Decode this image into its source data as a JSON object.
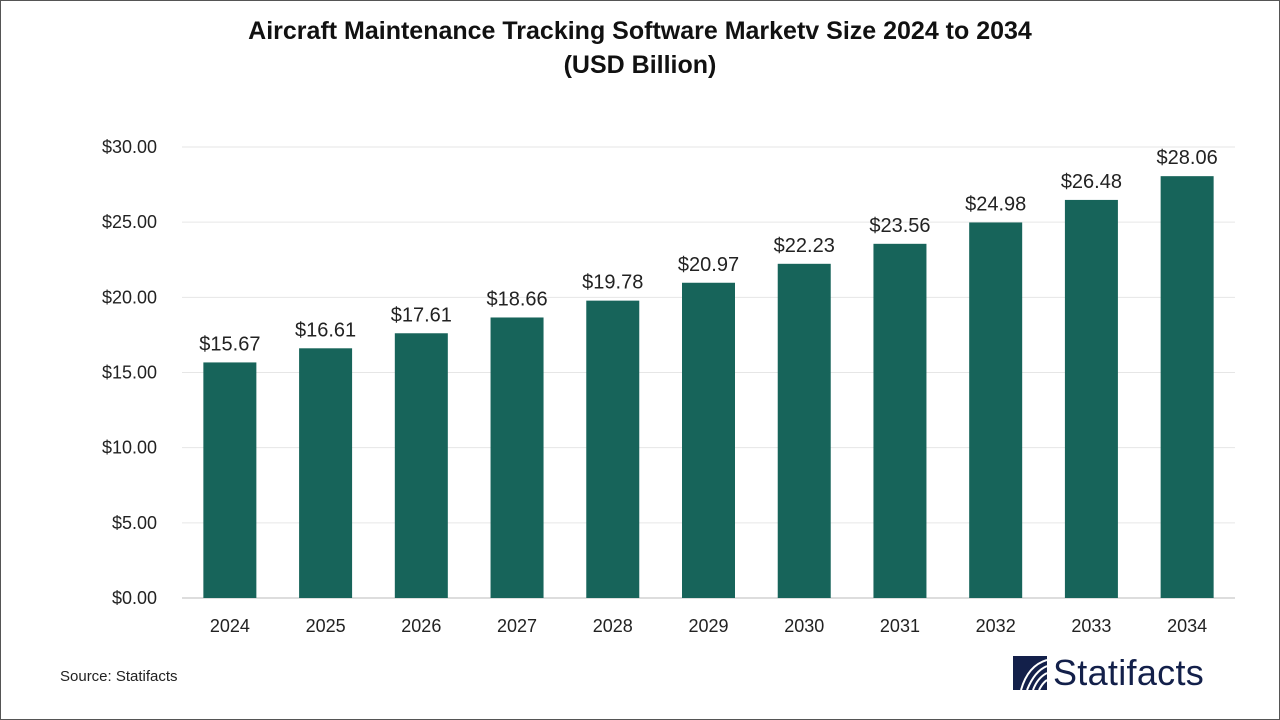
{
  "chart_data": {
    "type": "bar",
    "title": "Aircraft Maintenance Tracking Software Marketv Size 2024 to 2034",
    "subtitle": "(USD Billion)",
    "categories": [
      "2024",
      "2025",
      "2026",
      "2027",
      "2028",
      "2029",
      "2030",
      "2031",
      "2032",
      "2033",
      "2034"
    ],
    "values": [
      15.67,
      16.61,
      17.61,
      18.66,
      19.78,
      20.97,
      22.23,
      23.56,
      24.98,
      26.48,
      28.06
    ],
    "data_labels": [
      "$15.67",
      "$16.61",
      "$17.61",
      "$18.66",
      "$19.78",
      "$20.97",
      "$22.23",
      "$23.56",
      "$24.98",
      "$26.48",
      "$28.06"
    ],
    "yticks": [
      0,
      5,
      10,
      15,
      20,
      25,
      30
    ],
    "ytick_labels": [
      "$0.00",
      "$5.00",
      "$10.00",
      "$15.00",
      "$20.00",
      "$25.00",
      "$30.00"
    ],
    "ylim": [
      0,
      30
    ],
    "xlabel": "",
    "ylabel": "",
    "grid": true,
    "bar_color": "#17645a"
  },
  "source": "Source: Statifacts",
  "logo": {
    "text": "Statifacts",
    "color": "#13204a"
  }
}
